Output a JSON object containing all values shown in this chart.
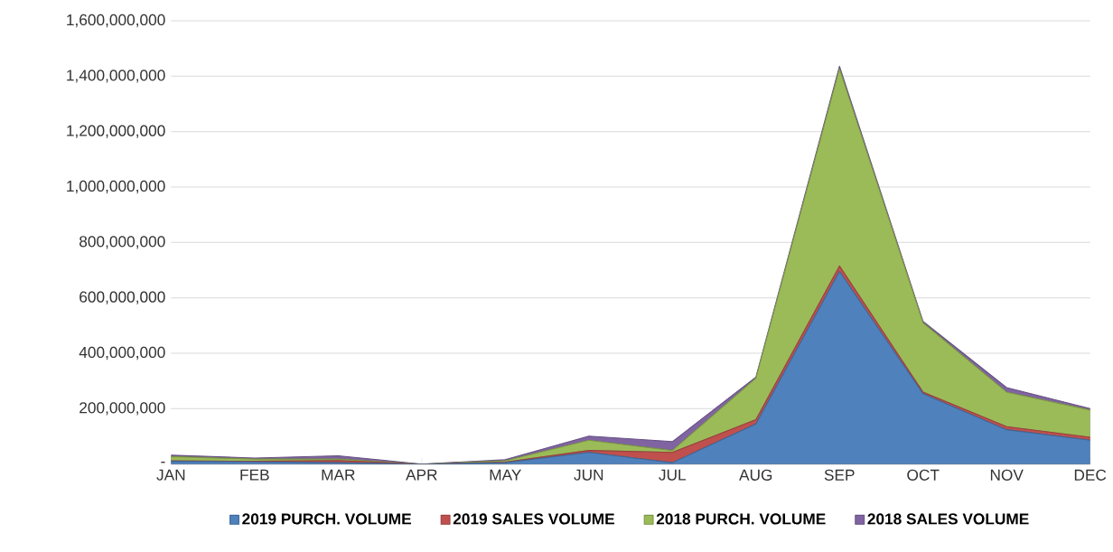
{
  "chart_data": {
    "type": "area",
    "stacked": true,
    "categories": [
      "JAN",
      "FEB",
      "MAR",
      "APR",
      "MAY",
      "JUN",
      "JUL",
      "AUG",
      "SEP",
      "OCT",
      "NOV",
      "DEC"
    ],
    "series": [
      {
        "name": "2019 PURCH. VOLUME",
        "color": "#4f81bd",
        "values": [
          10000000,
          8000000,
          5000000,
          0,
          5000000,
          42000000,
          5000000,
          145000000,
          695000000,
          254000000,
          124000000,
          86000000
        ]
      },
      {
        "name": "2019 SALES VOLUME",
        "color": "#c0504d",
        "values": [
          2000000,
          2000000,
          8000000,
          0,
          2000000,
          7000000,
          37000000,
          15000000,
          20000000,
          6000000,
          11000000,
          11000000
        ]
      },
      {
        "name": "2018 PURCH. VOLUME",
        "color": "#9bbb59",
        "values": [
          15000000,
          8000000,
          5000000,
          0,
          5000000,
          37000000,
          7000000,
          150000000,
          712000000,
          250000000,
          125000000,
          98000000
        ]
      },
      {
        "name": "2018 SALES VOLUME",
        "color": "#8064a2",
        "values": [
          5000000,
          4000000,
          12000000,
          0,
          4000000,
          15000000,
          32000000,
          4000000,
          9000000,
          5000000,
          16000000,
          5000000
        ]
      }
    ],
    "ylim": [
      0,
      1600000000
    ],
    "yticks": [
      {
        "value": 0,
        "label": "-"
      },
      {
        "value": 200000000,
        "label": "200,000,000"
      },
      {
        "value": 400000000,
        "label": "400,000,000"
      },
      {
        "value": 600000000,
        "label": "600,000,000"
      },
      {
        "value": 800000000,
        "label": "800,000,000"
      },
      {
        "value": 1000000000,
        "label": "1,000,000,000"
      },
      {
        "value": 1200000000,
        "label": "1,200,000,000"
      },
      {
        "value": 1400000000,
        "label": "1,400,000,000"
      },
      {
        "value": 1600000000,
        "label": "1,600,000,000"
      }
    ],
    "grid": "y",
    "legend": "bottom"
  }
}
